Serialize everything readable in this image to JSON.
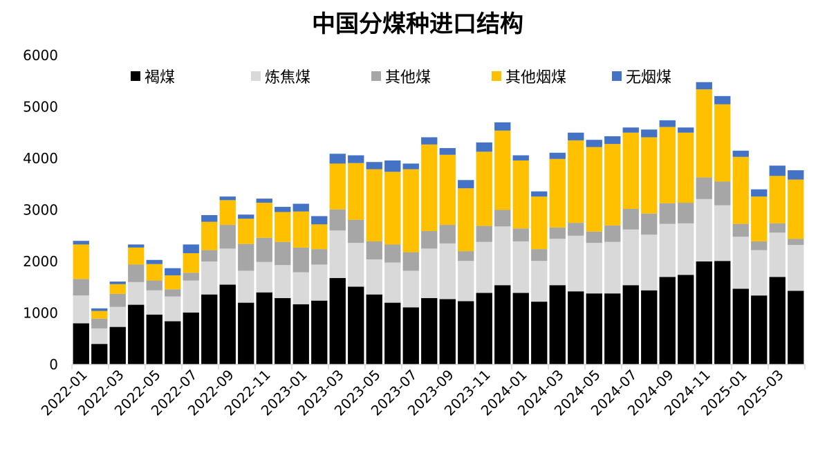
{
  "chart_data": {
    "type": "bar",
    "stacked": true,
    "title": "中国分煤种进口结构",
    "xlabel": "",
    "ylabel": "",
    "ylim": [
      0,
      6000
    ],
    "yticks": [
      0,
      1000,
      2000,
      3000,
      4000,
      5000,
      6000
    ],
    "grid": false,
    "legend_position": "top",
    "categories": [
      "2022-01",
      "2022-02",
      "2022-03",
      "2022-04",
      "2022-05",
      "2022-06",
      "2022-07",
      "2022-08",
      "2022-09",
      "2022-10",
      "2022-11",
      "2022-12",
      "2023-01",
      "2023-02",
      "2023-03",
      "2023-04",
      "2023-05",
      "2023-06",
      "2023-07",
      "2023-08",
      "2023-09",
      "2023-10",
      "2023-11",
      "2023-12",
      "2024-01",
      "2024-02",
      "2024-03",
      "2024-04",
      "2024-05",
      "2024-06",
      "2024-07",
      "2024-08",
      "2024-09",
      "2024-10",
      "2024-11",
      "2024-12",
      "2025-01",
      "2025-02",
      "2025-03",
      "2025-04"
    ],
    "xtick_labels": [
      "2022-01",
      "2022-03",
      "2022-05",
      "2022-07",
      "2022-09",
      "2022-11",
      "2023-01",
      "2023-03",
      "2023-05",
      "2023-07",
      "2023-09",
      "2023-11",
      "2024-01",
      "2024-03",
      "2024-05",
      "2024-07",
      "2024-09",
      "2024-11",
      "2025-01",
      "2025-03"
    ],
    "series": [
      {
        "name": "褐煤",
        "color": "#000000",
        "values": [
          800,
          400,
          730,
          1160,
          970,
          840,
          1010,
          1360,
          1550,
          1200,
          1400,
          1290,
          1170,
          1240,
          1680,
          1510,
          1360,
          1200,
          1110,
          1290,
          1270,
          1230,
          1390,
          1540,
          1390,
          1220,
          1540,
          1420,
          1380,
          1380,
          1540,
          1440,
          1700,
          1740,
          2000,
          2010,
          1470,
          1340,
          1700,
          1430
        ]
      },
      {
        "name": "炼焦煤",
        "color": "#d9d9d9",
        "values": [
          540,
          300,
          390,
          440,
          470,
          480,
          620,
          640,
          700,
          620,
          590,
          640,
          620,
          700,
          920,
          850,
          680,
          780,
          710,
          960,
          1080,
          780,
          990,
          1140,
          1000,
          790,
          900,
          1080,
          980,
          1000,
          1080,
          1080,
          1030,
          1000,
          1210,
          1080,
          1010,
          880,
          860,
          890
        ]
      },
      {
        "name": "其他煤",
        "color": "#a6a6a6",
        "values": [
          320,
          190,
          250,
          340,
          190,
          140,
          150,
          220,
          460,
          520,
          470,
          450,
          480,
          300,
          410,
          450,
          350,
          350,
          360,
          340,
          360,
          190,
          310,
          320,
          250,
          230,
          220,
          250,
          220,
          320,
          400,
          410,
          400,
          400,
          420,
          460,
          250,
          170,
          180,
          120
        ]
      },
      {
        "name": "其他烟煤",
        "color": "#ffc000",
        "values": [
          670,
          150,
          190,
          330,
          320,
          270,
          380,
          550,
          480,
          490,
          680,
          580,
          700,
          480,
          890,
          1100,
          1400,
          1410,
          1610,
          1680,
          1360,
          1220,
          1440,
          1540,
          1320,
          1020,
          1330,
          1600,
          1640,
          1580,
          1480,
          1480,
          1480,
          1360,
          1710,
          1500,
          1300,
          870,
          920,
          1150
        ]
      },
      {
        "name": "无烟煤",
        "color": "#4472c4",
        "values": [
          70,
          50,
          50,
          60,
          80,
          140,
          170,
          130,
          70,
          80,
          80,
          100,
          150,
          160,
          190,
          150,
          140,
          220,
          110,
          140,
          130,
          160,
          180,
          160,
          100,
          100,
          120,
          150,
          140,
          150,
          100,
          150,
          130,
          100,
          140,
          160,
          120,
          140,
          200,
          180
        ]
      }
    ]
  }
}
